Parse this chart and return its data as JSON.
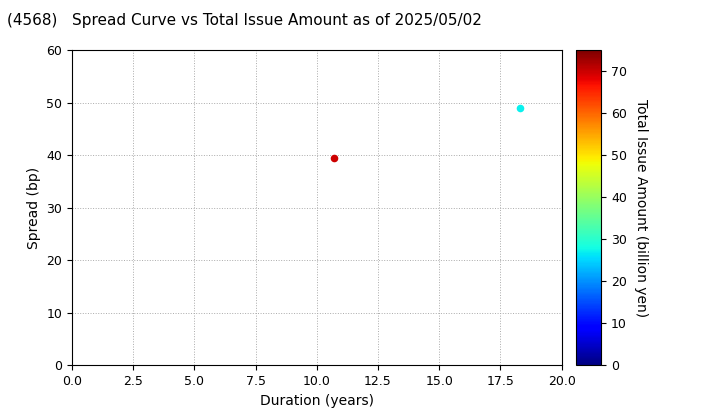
{
  "title": "(4568)   Spread Curve vs Total Issue Amount as of 2025/05/02",
  "xlabel": "Duration (years)",
  "ylabel": "Spread (bp)",
  "colorbar_label": "Total Issue Amount (billion yen)",
  "xlim": [
    0.0,
    20.0
  ],
  "ylim": [
    0,
    60
  ],
  "xticks": [
    0.0,
    2.5,
    5.0,
    7.5,
    10.0,
    12.5,
    15.0,
    17.5,
    20.0
  ],
  "yticks": [
    0,
    10,
    20,
    30,
    40,
    50,
    60
  ],
  "colorbar_ticks": [
    0,
    10,
    20,
    30,
    40,
    50,
    60,
    70
  ],
  "colorbar_vmin": 0,
  "colorbar_vmax": 75,
  "points": [
    {
      "duration": 10.7,
      "spread": 39.5,
      "amount": 70
    },
    {
      "duration": 18.3,
      "spread": 49.0,
      "amount": 27
    }
  ],
  "marker_size": 30,
  "background_color": "#ffffff",
  "grid_color": "#aaaaaa",
  "grid_style": "dotted",
  "title_fontsize": 11,
  "axis_label_fontsize": 10,
  "tick_fontsize": 9
}
